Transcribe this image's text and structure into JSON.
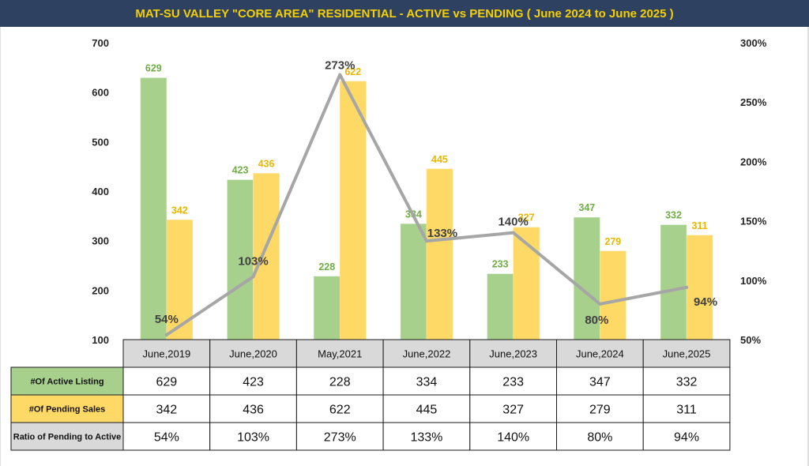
{
  "title": "MAT-SU VALLEY \"CORE AREA\" RESIDENTIAL  - ACTIVE vs PENDING ( June 2024 to June 2025 )",
  "colors": {
    "title_bg": "#2e4160",
    "title_text": "#f5d000",
    "active": "#a8d08d",
    "pending": "#ffd966",
    "active_label": "#70ad47",
    "pending_label": "#e6b800",
    "ratio_line": "#a6a6a6",
    "ratio_label": "#404040",
    "header_fill": "#d9d9d9"
  },
  "chart_data": {
    "type": "bar",
    "categories": [
      "June,2019",
      "June,2020",
      "May,2021",
      "June,2022",
      "June,2023",
      "June,2024",
      "June,2025"
    ],
    "series": [
      {
        "name": "#Of Active Listing",
        "type": "bar",
        "axis": "left",
        "values": [
          629,
          423,
          228,
          334,
          233,
          347,
          332
        ],
        "labels": [
          "629",
          "423",
          "228",
          "334",
          "233",
          "347",
          "332"
        ]
      },
      {
        "name": "#Of Pending Sales",
        "type": "bar",
        "axis": "left",
        "values": [
          342,
          436,
          622,
          445,
          327,
          279,
          311
        ],
        "labels": [
          "342",
          "436",
          "622",
          "445",
          "327",
          "279",
          "311"
        ]
      },
      {
        "name": "Ratio of Pending to Active",
        "type": "line",
        "axis": "right",
        "values": [
          54,
          103,
          273,
          133,
          140,
          80,
          94
        ],
        "labels": [
          "54%",
          "103%",
          "273%",
          "133%",
          "140%",
          "80%",
          "94%"
        ]
      }
    ],
    "y_left": {
      "min": 100,
      "max": 700,
      "ticks": [
        "100",
        "200",
        "300",
        "400",
        "500",
        "600",
        "700"
      ]
    },
    "y_right": {
      "min": 50,
      "max": 300,
      "ticks": [
        "50%",
        "100%",
        "150%",
        "200%",
        "250%",
        "300%"
      ]
    },
    "grid": false,
    "legend": "data table below chart"
  }
}
